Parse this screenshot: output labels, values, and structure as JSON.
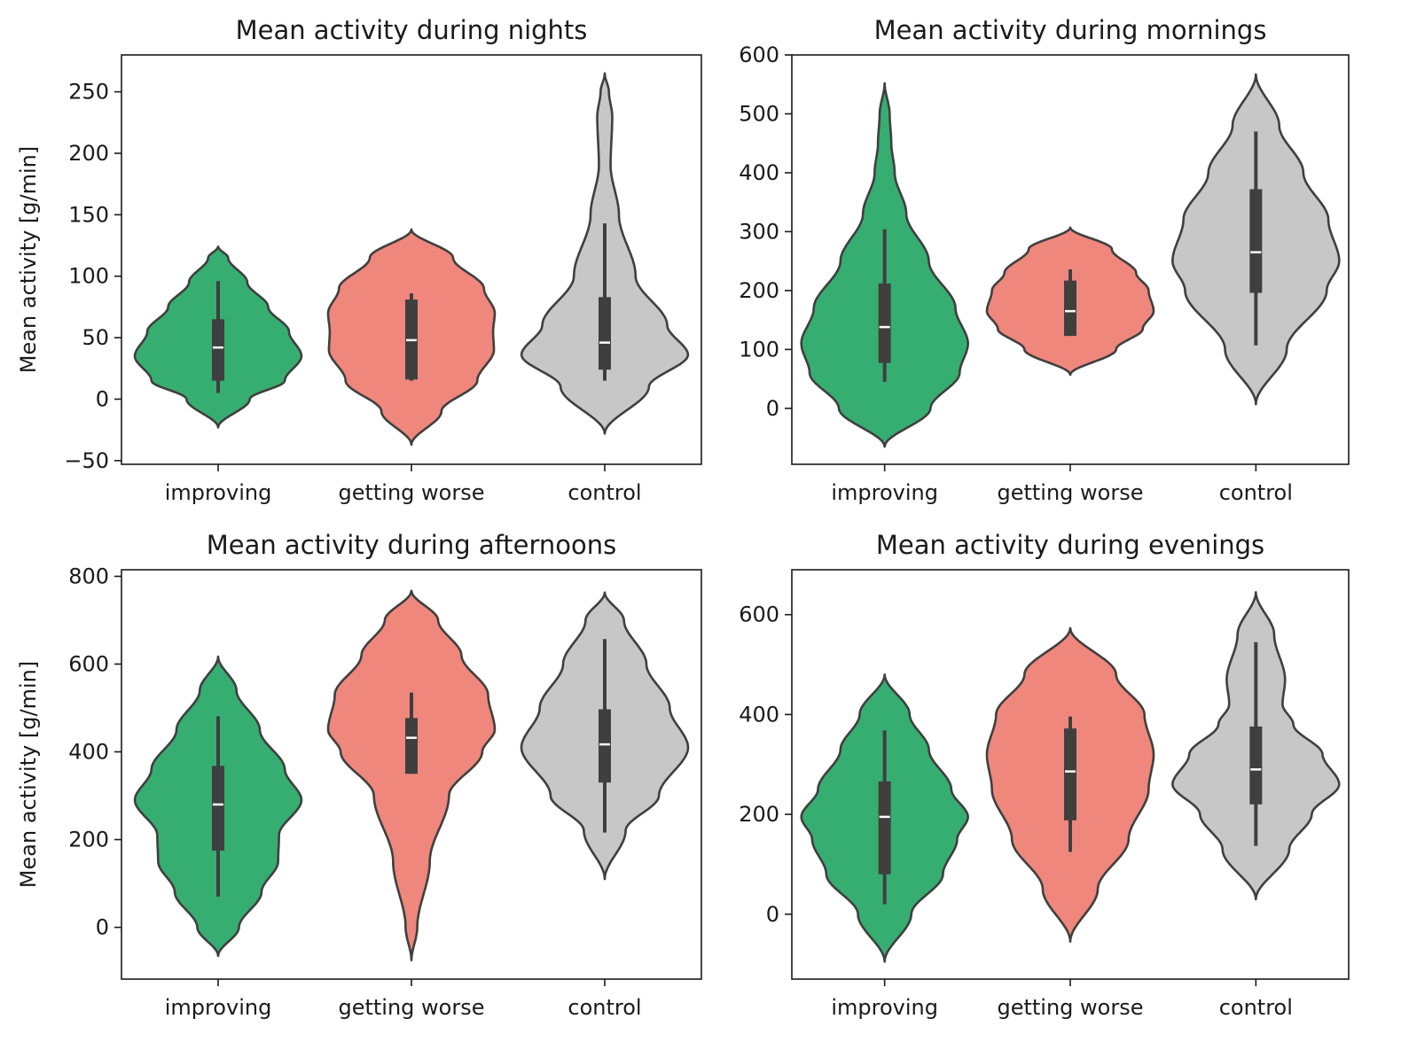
{
  "chart_data": [
    {
      "type": "violin",
      "title": "Mean activity during nights",
      "xlabel": "",
      "ylabel": "Mean activity [g/min]",
      "ylim": [
        -53,
        280
      ],
      "yticks": [
        -50,
        0,
        50,
        100,
        150,
        200,
        250
      ],
      "categories": [
        "improving",
        "getting worse",
        "control"
      ],
      "colors": [
        "#36ae71",
        "#ef877c",
        "#c6c7c6"
      ],
      "groups": [
        {
          "name": "improving",
          "min": 5,
          "q1": 15,
          "median": 42,
          "q3": 65,
          "max": 96,
          "profile": [
            [
              -23,
              0
            ],
            [
              0,
              0.38
            ],
            [
              15,
              0.8
            ],
            [
              35,
              1.0
            ],
            [
              55,
              0.85
            ],
            [
              75,
              0.6
            ],
            [
              95,
              0.35
            ],
            [
              115,
              0.12
            ],
            [
              124,
              0
            ]
          ]
        },
        {
          "name": "getting worse",
          "min": 15,
          "q1": 16,
          "median": 48,
          "q3": 81,
          "max": 86,
          "profile": [
            [
              -37,
              0
            ],
            [
              -10,
              0.36
            ],
            [
              15,
              0.79
            ],
            [
              40,
              0.99
            ],
            [
              55,
              0.98
            ],
            [
              70,
              1.0
            ],
            [
              90,
              0.87
            ],
            [
              115,
              0.5
            ],
            [
              138,
              0
            ]
          ]
        },
        {
          "name": "control",
          "min": 15,
          "q1": 24,
          "median": 46,
          "q3": 83,
          "max": 143,
          "profile": [
            [
              -28,
              0
            ],
            [
              10,
              0.53
            ],
            [
              36,
              1.0
            ],
            [
              60,
              0.75
            ],
            [
              100,
              0.37
            ],
            [
              150,
              0.17
            ],
            [
              190,
              0.07
            ],
            [
              230,
              0.09
            ],
            [
              250,
              0.05
            ],
            [
              265,
              0
            ]
          ]
        }
      ]
    },
    {
      "type": "violin",
      "title": "Mean activity during mornings",
      "xlabel": "",
      "ylabel": "",
      "ylim": [
        -95,
        600
      ],
      "yticks": [
        0,
        100,
        200,
        300,
        400,
        500,
        600
      ],
      "categories": [
        "improving",
        "getting worse",
        "control"
      ],
      "colors": [
        "#36ae71",
        "#ef877c",
        "#c6c7c6"
      ],
      "groups": [
        {
          "name": "improving",
          "min": 45,
          "q1": 77,
          "median": 138,
          "q3": 212,
          "max": 304,
          "profile": [
            [
              -65,
              0
            ],
            [
              0,
              0.55
            ],
            [
              60,
              0.9
            ],
            [
              110,
              1.0
            ],
            [
              170,
              0.85
            ],
            [
              250,
              0.53
            ],
            [
              330,
              0.26
            ],
            [
              400,
              0.12
            ],
            [
              450,
              0.08
            ],
            [
              500,
              0.06
            ],
            [
              552,
              0
            ]
          ]
        },
        {
          "name": "getting worse",
          "min": 123,
          "q1": 123,
          "median": 165,
          "q3": 217,
          "max": 236,
          "profile": [
            [
              57,
              0
            ],
            [
              100,
              0.55
            ],
            [
              135,
              0.87
            ],
            [
              165,
              1.0
            ],
            [
              200,
              0.94
            ],
            [
              230,
              0.79
            ],
            [
              270,
              0.5
            ],
            [
              307,
              0
            ]
          ]
        },
        {
          "name": "control",
          "min": 107,
          "q1": 196,
          "median": 265,
          "q3": 372,
          "max": 470,
          "profile": [
            [
              7,
              0
            ],
            [
              100,
              0.37
            ],
            [
              200,
              0.85
            ],
            [
              250,
              1.0
            ],
            [
              320,
              0.87
            ],
            [
              400,
              0.57
            ],
            [
              480,
              0.28
            ],
            [
              567,
              0
            ]
          ]
        }
      ]
    },
    {
      "type": "violin",
      "title": "Mean activity during afternoons",
      "xlabel": "",
      "ylabel": "Mean activity [g/min]",
      "ylim": [
        -118,
        815
      ],
      "yticks": [
        0,
        200,
        400,
        600,
        800
      ],
      "categories": [
        "improving",
        "getting worse",
        "control"
      ],
      "colors": [
        "#36ae71",
        "#ef877c",
        "#c6c7c6"
      ],
      "groups": [
        {
          "name": "improving",
          "min": 70,
          "q1": 175,
          "median": 280,
          "q3": 368,
          "max": 481,
          "profile": [
            [
              -65,
              0
            ],
            [
              0,
              0.25
            ],
            [
              80,
              0.52
            ],
            [
              150,
              0.72
            ],
            [
              210,
              0.73
            ],
            [
              290,
              1.0
            ],
            [
              360,
              0.8
            ],
            [
              450,
              0.5
            ],
            [
              540,
              0.22
            ],
            [
              617,
              0
            ]
          ]
        },
        {
          "name": "getting worse",
          "min": 350,
          "q1": 350,
          "median": 432,
          "q3": 477,
          "max": 535,
          "profile": [
            [
              -75,
              0
            ],
            [
              0,
              0.07
            ],
            [
              150,
              0.22
            ],
            [
              300,
              0.45
            ],
            [
              400,
              0.85
            ],
            [
              450,
              1.0
            ],
            [
              530,
              0.92
            ],
            [
              620,
              0.6
            ],
            [
              700,
              0.32
            ],
            [
              767,
              0
            ]
          ]
        },
        {
          "name": "control",
          "min": 216,
          "q1": 330,
          "median": 417,
          "q3": 497,
          "max": 657,
          "profile": [
            [
              110,
              0
            ],
            [
              220,
              0.25
            ],
            [
              300,
              0.65
            ],
            [
              410,
              1.0
            ],
            [
              500,
              0.78
            ],
            [
              600,
              0.5
            ],
            [
              700,
              0.23
            ],
            [
              763,
              0
            ]
          ]
        }
      ]
    },
    {
      "type": "violin",
      "title": "Mean activity during evenings",
      "xlabel": "",
      "ylabel": "",
      "ylim": [
        -130,
        690
      ],
      "yticks": [
        0,
        200,
        400,
        600
      ],
      "categories": [
        "improving",
        "getting worse",
        "control"
      ],
      "colors": [
        "#36ae71",
        "#ef877c",
        "#c6c7c6"
      ],
      "groups": [
        {
          "name": "improving",
          "min": 20,
          "q1": 80,
          "median": 195,
          "q3": 266,
          "max": 368,
          "profile": [
            [
              -95,
              0
            ],
            [
              0,
              0.32
            ],
            [
              80,
              0.7
            ],
            [
              150,
              0.87
            ],
            [
              195,
              1.0
            ],
            [
              250,
              0.8
            ],
            [
              330,
              0.53
            ],
            [
              400,
              0.3
            ],
            [
              480,
              0
            ]
          ]
        },
        {
          "name": "getting worse",
          "min": 125,
          "q1": 188,
          "median": 286,
          "q3": 372,
          "max": 396,
          "profile": [
            [
              -55,
              0
            ],
            [
              50,
              0.33
            ],
            [
              150,
              0.7
            ],
            [
              250,
              0.94
            ],
            [
              320,
              1.0
            ],
            [
              400,
              0.89
            ],
            [
              480,
              0.55
            ],
            [
              573,
              0
            ]
          ]
        },
        {
          "name": "control",
          "min": 137,
          "q1": 220,
          "median": 290,
          "q3": 376,
          "max": 545,
          "profile": [
            [
              30,
              0
            ],
            [
              130,
              0.4
            ],
            [
              200,
              0.67
            ],
            [
              260,
              1.0
            ],
            [
              320,
              0.8
            ],
            [
              380,
              0.45
            ],
            [
              420,
              0.32
            ],
            [
              470,
              0.35
            ],
            [
              560,
              0.22
            ],
            [
              645,
              0
            ]
          ]
        }
      ]
    }
  ]
}
